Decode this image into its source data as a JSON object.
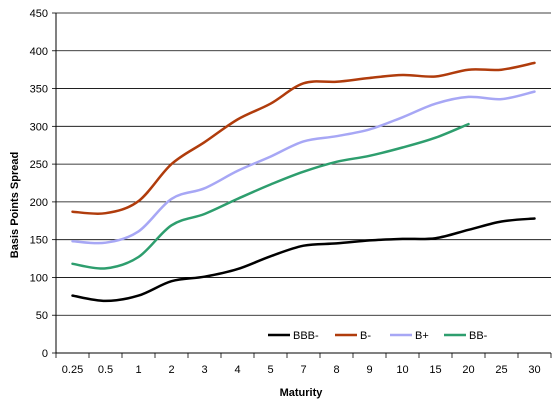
{
  "chart_data": {
    "type": "line",
    "xlabel": "Maturity",
    "ylabel": "Basis Points Spread",
    "categories": [
      "0.25",
      "0.5",
      "1",
      "2",
      "3",
      "4",
      "5",
      "7",
      "8",
      "9",
      "10",
      "15",
      "20",
      "25",
      "30"
    ],
    "ylim": [
      0,
      450
    ],
    "yticks": [
      "0",
      "50",
      "100",
      "150",
      "200",
      "250",
      "300",
      "350",
      "400",
      "450"
    ],
    "grid": true,
    "legend_position": "bottom-right",
    "series": [
      {
        "name": "BBB-",
        "color": "#000000",
        "values": [
          76,
          69,
          76,
          95,
          101,
          111,
          128,
          142,
          145,
          149,
          151,
          152,
          163,
          174,
          178
        ]
      },
      {
        "name": "B-",
        "color": "#b03c0c",
        "values": [
          187,
          185,
          201,
          250,
          279,
          309,
          330,
          357,
          359,
          364,
          368,
          366,
          375,
          375,
          384
        ]
      },
      {
        "name": "B+",
        "color": "#a7a7f5",
        "values": [
          148,
          146,
          161,
          204,
          218,
          241,
          260,
          280,
          287,
          296,
          312,
          330,
          339,
          336,
          346
        ]
      },
      {
        "name": "BB-",
        "color": "#2e9e6e",
        "values": [
          118,
          112,
          127,
          169,
          184,
          204,
          223,
          240,
          253,
          261,
          272,
          285,
          303,
          null,
          null
        ]
      }
    ]
  }
}
